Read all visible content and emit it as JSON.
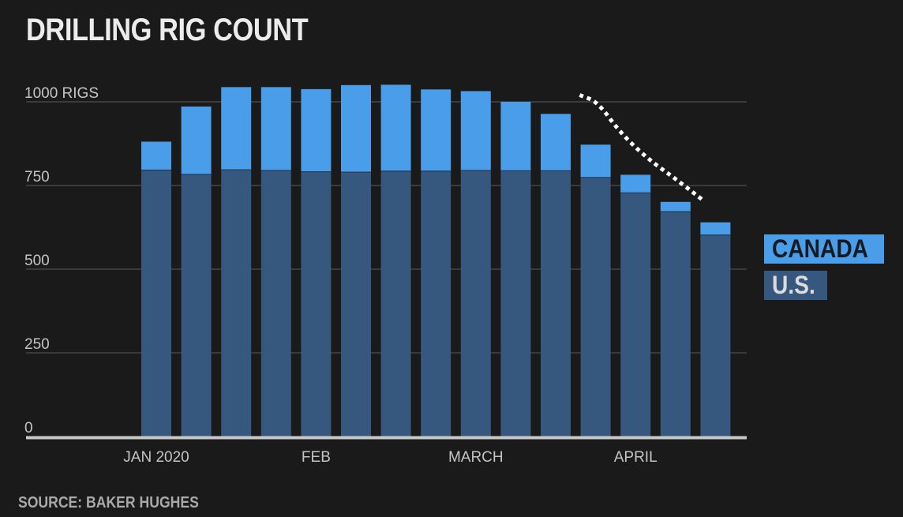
{
  "title": "DRILLING RIG COUNT",
  "source": "SOURCE: BAKER HUGHES",
  "colors": {
    "background": "#1a1a1a",
    "canada": "#4a9de8",
    "us": "#36577e",
    "grid": "#5a5a5a",
    "baseline": "#c8c8c8",
    "trend": "#ffffff",
    "axis_text": "#c4c4c4"
  },
  "chart_data": {
    "type": "bar",
    "stacked": true,
    "title": "DRILLING RIG COUNT",
    "xlabel": "",
    "ylabel": "",
    "ylim": [
      0,
      1000
    ],
    "yticks": [
      {
        "value": 0,
        "label": "0"
      },
      {
        "value": 250,
        "label": "250"
      },
      {
        "value": 500,
        "label": "500"
      },
      {
        "value": 750,
        "label": "750"
      },
      {
        "value": 1000,
        "label": "1000 RIGS"
      }
    ],
    "x_labels": [
      {
        "label": "JAN 2020",
        "bar_index": 0
      },
      {
        "label": "FEB",
        "bar_index": 4
      },
      {
        "label": "MARCH",
        "bar_index": 8
      },
      {
        "label": "APRIL",
        "bar_index": 12
      }
    ],
    "series": [
      {
        "name": "U.S.",
        "color": "#36577e",
        "values": [
          796,
          783,
          797,
          795,
          791,
          790,
          793,
          793,
          795,
          794,
          794,
          774,
          728,
          672,
          602
        ]
      },
      {
        "name": "CANADA",
        "color": "#4a9de8",
        "values": [
          85,
          203,
          247,
          249,
          247,
          260,
          258,
          244,
          237,
          206,
          170,
          98,
          54,
          29,
          38
        ]
      }
    ],
    "grid": true,
    "legend_position": "right",
    "annotation": "dotted downward trend line over the latest bars",
    "trend_line": [
      {
        "bar": 10.6,
        "value": 1020
      },
      {
        "bar": 11.05,
        "value": 1000
      },
      {
        "bar": 11.6,
        "value": 910
      },
      {
        "bar": 12.3,
        "value": 830
      },
      {
        "bar": 13.0,
        "value": 770
      },
      {
        "bar": 13.7,
        "value": 705
      }
    ]
  }
}
